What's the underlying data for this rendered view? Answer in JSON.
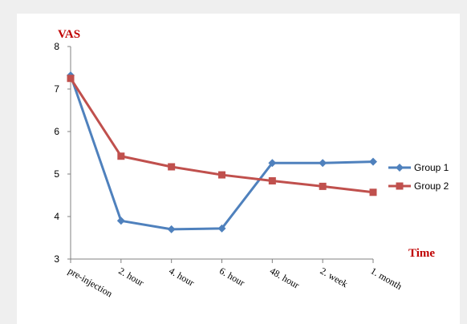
{
  "chart_data": {
    "type": "line",
    "ylabel": "VAS",
    "xlabel": "Time",
    "ylim": [
      3,
      8
    ],
    "yticks": [
      3,
      4,
      5,
      6,
      7,
      8
    ],
    "categories": [
      "pre-injection",
      "2. hour",
      "4. hour",
      "6. hour",
      "48. hour",
      "2. week",
      "1. month"
    ],
    "series": [
      {
        "name": "Group 1",
        "color": "#4f81bd",
        "marker": "diamond",
        "values": [
          7.32,
          3.9,
          3.7,
          3.72,
          5.26,
          5.26,
          5.29
        ]
      },
      {
        "name": "Group 2",
        "color": "#c0504d",
        "marker": "square",
        "values": [
          7.25,
          5.42,
          5.17,
          4.98,
          4.84,
          4.71,
          4.57
        ]
      }
    ],
    "legend_position": "right",
    "grid": false
  }
}
